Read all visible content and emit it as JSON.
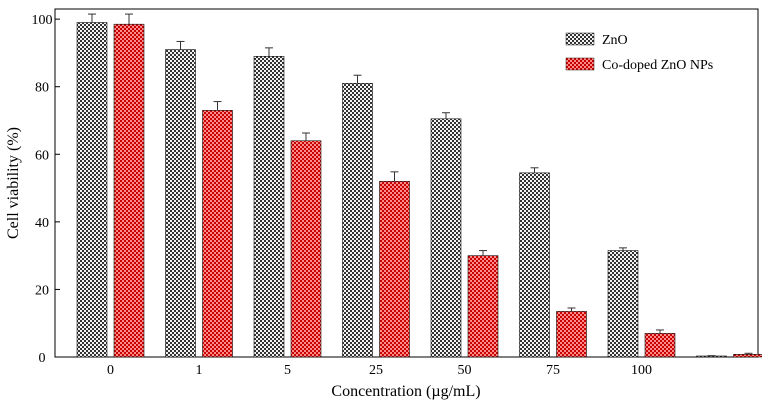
{
  "chart_data": {
    "type": "bar",
    "title": "",
    "xlabel": "Concentration (µg/mL)",
    "ylabel": "Cell viability (%)",
    "ylim": [
      0,
      103
    ],
    "yticks": [
      0,
      20,
      40,
      60,
      80,
      100
    ],
    "categories": [
      "0",
      "1",
      "5",
      "25",
      "50",
      "75",
      "100",
      ""
    ],
    "series": [
      {
        "name": "ZnO",
        "color": "#555555",
        "pattern": "checker-gray",
        "values": [
          99,
          91,
          89,
          81,
          70.5,
          54.5,
          31.5,
          0.3
        ],
        "errors": [
          2.5,
          2.4,
          2.5,
          2.4,
          1.8,
          1.5,
          0.8,
          0.1
        ]
      },
      {
        "name": "Co-doped ZnO NPs",
        "color": "#d01010",
        "pattern": "checker-red",
        "values": [
          98.5,
          73,
          64,
          52,
          30,
          13.5,
          7,
          0.8
        ],
        "errors": [
          3,
          2.6,
          2.3,
          2.8,
          1.5,
          1,
          1,
          0.3
        ]
      }
    ],
    "legend_position": "top-right",
    "grid": false
  }
}
